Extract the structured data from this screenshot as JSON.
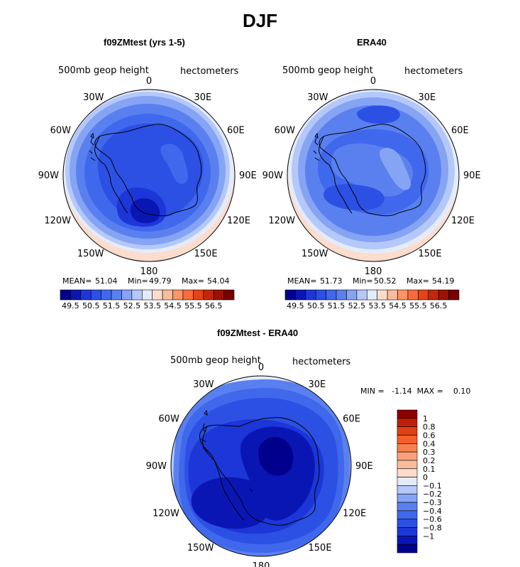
{
  "figure_title": "DJF",
  "colors": {
    "scale": [
      "#00008c",
      "#0a16b4",
      "#1c36d8",
      "#2c50e4",
      "#4068ec",
      "#5a80f0",
      "#86a4f4",
      "#b4c8fa",
      "#e4ecfc",
      "#fcdccc",
      "#fcbc9c",
      "#fc9464",
      "#f86c3c",
      "#e44418",
      "#c42608",
      "#9c1204",
      "#780000"
    ],
    "diff": [
      "#00008c",
      "#0a16b4",
      "#1c36d8",
      "#2c50e4",
      "#4068ec",
      "#5a80f0",
      "#86a4f4",
      "#b4c8fa",
      "#e4ecfc",
      "#fcdccc",
      "#fcbc9c",
      "#fca07c",
      "#f88050",
      "#f4602c",
      "#e04016",
      "#c01e06",
      "#8c0000"
    ],
    "coast": "#000000"
  },
  "panels": {
    "left": {
      "title": "f09ZMtest (yrs 1-5)",
      "field": "500mb geop height",
      "units": "hectometers",
      "mean_label": "MEAN=",
      "mean": "51.04",
      "min_label": "Min=",
      "min": "49.79",
      "max_label": "Max=",
      "max": "54.04"
    },
    "right": {
      "title": "ERA40",
      "field": "500mb geop height",
      "units": "hectometers",
      "mean_label": "MEAN=",
      "mean": "51.73",
      "min_label": "Min=",
      "min": "50.52",
      "max_label": "Max=",
      "max": "54.19"
    },
    "diff": {
      "title": "f09ZMtest - ERA40",
      "field": "500mb geop height",
      "units": "hectometers",
      "stats": "MIN =   -1.14  MAX =    0.10"
    }
  },
  "lon_labels": [
    "0",
    "30E",
    "60E",
    "90E",
    "120E",
    "150E",
    "180",
    "150W",
    "120W",
    "90W",
    "60W",
    "30W"
  ],
  "chart_data": [
    {
      "type": "heatmap",
      "title": "f09ZMtest (yrs 1-5)",
      "projection": "south polar stereographic",
      "variable": "500mb geop height",
      "units": "hectometers",
      "mean": 51.04,
      "min": 49.79,
      "max": 54.04,
      "levels": [
        49.5,
        50,
        50.5,
        51,
        51.5,
        52,
        52.5,
        53,
        53.5,
        54,
        54.5,
        55,
        55.5,
        56,
        56.5
      ],
      "colorbar_tick_labels": [
        "49.5",
        "50.5",
        "51.5",
        "52.5",
        "53.5",
        "54.5",
        "55.5",
        "56.5"
      ]
    },
    {
      "type": "heatmap",
      "title": "ERA40",
      "projection": "south polar stereographic",
      "variable": "500mb geop height",
      "units": "hectometers",
      "mean": 51.73,
      "min": 50.52,
      "max": 54.19,
      "levels": [
        49.5,
        50,
        50.5,
        51,
        51.5,
        52,
        52.5,
        53,
        53.5,
        54,
        54.5,
        55,
        55.5,
        56,
        56.5
      ],
      "colorbar_tick_labels": [
        "49.5",
        "50.5",
        "51.5",
        "52.5",
        "53.5",
        "54.5",
        "55.5",
        "56.5"
      ]
    },
    {
      "type": "heatmap",
      "title": "f09ZMtest - ERA40",
      "projection": "south polar stereographic",
      "variable": "500mb geop height",
      "units": "hectometers",
      "min": -1.14,
      "max": 0.1,
      "levels": [
        -1,
        -0.8,
        -0.6,
        -0.4,
        -0.3,
        -0.2,
        -0.1,
        0,
        0.1,
        0.2,
        0.3,
        0.4,
        0.6,
        0.8,
        1
      ],
      "colorbar_tick_labels": [
        "1",
        "0.8",
        "0.6",
        "0.4",
        "0.3",
        "0.2",
        "0.1",
        "0",
        "−0.1",
        "−0.2",
        "−0.3",
        "−0.4",
        "−0.6",
        "−0.8",
        "−1"
      ]
    }
  ]
}
